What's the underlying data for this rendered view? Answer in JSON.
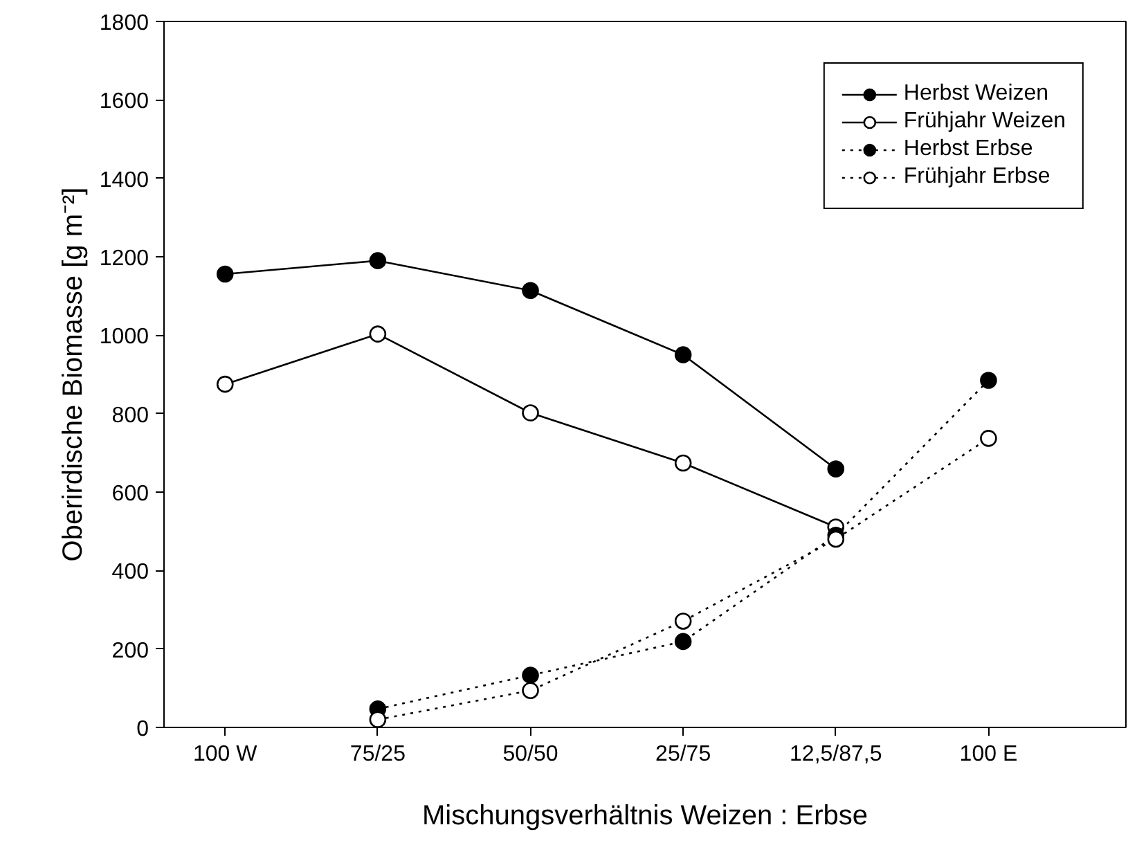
{
  "chart_data": {
    "type": "line",
    "xlabel": "Mischungsverhältnis Weizen : Erbse",
    "ylabel": "Oberirdische Biomasse [g m⁻²]",
    "categories": [
      "100 W",
      "75/25",
      "50/50",
      "25/75",
      "12,5/87,5",
      "100 E"
    ],
    "ylim": [
      0,
      1800
    ],
    "yticks": [
      0,
      200,
      400,
      600,
      800,
      1000,
      1200,
      1400,
      1600,
      1800
    ],
    "grid": false,
    "legend": "top right",
    "series": [
      {
        "name": "Herbst Weizen",
        "color": "#000000",
        "marker": "circle",
        "line_style": "solid",
        "values": [
          1156,
          1190,
          1114,
          950,
          659,
          null
        ]
      },
      {
        "name": "Frühjahr Weizen",
        "color": "#000000",
        "marker": "circle_open",
        "line_style": "solid",
        "values": [
          875,
          1003,
          802,
          674,
          511,
          null
        ]
      },
      {
        "name": "Herbst Erbse",
        "color": "#000000",
        "marker": "circle",
        "line_style": "dotted",
        "values": [
          null,
          47,
          133,
          219,
          490,
          885
        ]
      },
      {
        "name": "Frühjahr Erbse",
        "color": "#000000",
        "marker": "circle_open",
        "line_style": "dotted",
        "values": [
          null,
          20,
          94,
          271,
          480,
          737
        ]
      }
    ]
  }
}
